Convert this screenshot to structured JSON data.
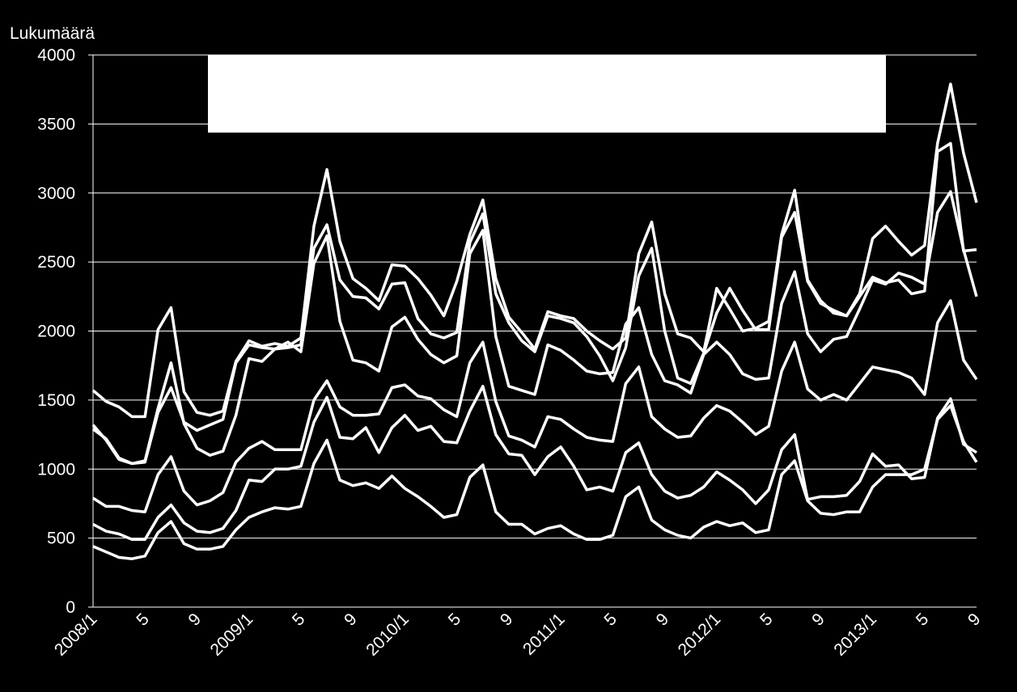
{
  "chart_data": {
    "type": "line",
    "y_label": "Lukumäärä",
    "categories": [
      "2008/1",
      null,
      null,
      null,
      "5",
      null,
      null,
      null,
      "9",
      null,
      null,
      null,
      "2009/1",
      null,
      null,
      null,
      "5",
      null,
      null,
      null,
      "9",
      null,
      null,
      null,
      "2010/1",
      null,
      null,
      null,
      "5",
      null,
      null,
      null,
      "9",
      null,
      null,
      null,
      "2011/1",
      null,
      null,
      null,
      "5",
      null,
      null,
      null,
      "9",
      null,
      null,
      null,
      "2012/1",
      null,
      null,
      null,
      "5",
      null,
      null,
      null,
      "9",
      null,
      null,
      null,
      "2013/1",
      null,
      null,
      null,
      "5",
      null,
      null,
      null,
      "9"
    ],
    "series": [
      {
        "color": "#ffffff",
        "values": [
          1570,
          1490,
          1450,
          1380,
          1380,
          2010,
          2170,
          1560,
          1410,
          1390,
          1420,
          1780,
          1930,
          1890,
          1910,
          1890,
          1950,
          2760,
          3170,
          2650,
          2380,
          2310,
          2220,
          2480,
          2470,
          2380,
          2260,
          2110,
          2360,
          2700,
          2950,
          2380,
          2100,
          1990,
          1870,
          2140,
          2110,
          2090,
          2000,
          1930,
          1870,
          1950,
          2560,
          2790,
          2270,
          1980,
          1950,
          1850,
          2310,
          2160,
          2000,
          2020,
          2070,
          2700,
          3020,
          2370,
          2220,
          2130,
          2110,
          2270,
          2670,
          2760,
          2650,
          2550,
          2620,
          3360,
          3790,
          3290,
          2930
        ]
      },
      {
        "color": "#ffffff",
        "values": [
          1320,
          1210,
          1070,
          1040,
          1060,
          1440,
          1770,
          1330,
          1150,
          1100,
          1130,
          1390,
          1800,
          1780,
          1870,
          1880,
          1900,
          2600,
          2770,
          2370,
          2250,
          2240,
          2160,
          2340,
          2350,
          2090,
          1980,
          1950,
          1990,
          2640,
          2850,
          2270,
          2060,
          1930,
          1850,
          2110,
          2090,
          2060,
          1960,
          1820,
          1640,
          1880,
          2400,
          2600,
          2000,
          1660,
          1620,
          1840,
          2130,
          2310,
          2150,
          2010,
          2010,
          2680,
          2860,
          2360,
          2200,
          2150,
          2110,
          2250,
          2390,
          2350,
          2370,
          2270,
          2290,
          3300,
          3360,
          2580,
          2590
        ]
      },
      {
        "color": "#ffffff",
        "values": [
          1290,
          1220,
          1080,
          1040,
          1050,
          1410,
          1590,
          1340,
          1280,
          1320,
          1360,
          1770,
          1900,
          1880,
          1870,
          1920,
          1850,
          2490,
          2690,
          2070,
          1790,
          1770,
          1710,
          2030,
          2100,
          1940,
          1830,
          1770,
          1820,
          2560,
          2730,
          1960,
          1600,
          1570,
          1540,
          1900,
          1860,
          1790,
          1710,
          1690,
          1700,
          2050,
          2170,
          1830,
          1640,
          1610,
          1550,
          1830,
          1920,
          1830,
          1690,
          1650,
          1660,
          2200,
          2430,
          1980,
          1850,
          1940,
          1960,
          2160,
          2370,
          2340,
          2420,
          2390,
          2340,
          2860,
          3010,
          2590,
          2250
        ]
      },
      {
        "color": "#ffffff",
        "values": [
          790,
          730,
          730,
          700,
          690,
          960,
          1090,
          840,
          740,
          770,
          830,
          1050,
          1150,
          1200,
          1140,
          1140,
          1140,
          1500,
          1640,
          1450,
          1390,
          1390,
          1400,
          1590,
          1610,
          1530,
          1510,
          1430,
          1380,
          1770,
          1920,
          1490,
          1240,
          1210,
          1160,
          1380,
          1360,
          1290,
          1230,
          1210,
          1200,
          1620,
          1740,
          1380,
          1290,
          1230,
          1240,
          1370,
          1460,
          1420,
          1340,
          1250,
          1310,
          1710,
          1920,
          1580,
          1500,
          1540,
          1500,
          1620,
          1740,
          1720,
          1700,
          1660,
          1540,
          2060,
          2220,
          1790,
          1650
        ]
      },
      {
        "color": "#ffffff",
        "values": [
          600,
          550,
          530,
          490,
          490,
          650,
          740,
          610,
          550,
          540,
          570,
          700,
          920,
          910,
          1000,
          1000,
          1020,
          1340,
          1520,
          1230,
          1220,
          1300,
          1120,
          1300,
          1390,
          1280,
          1310,
          1200,
          1190,
          1420,
          1600,
          1250,
          1110,
          1100,
          960,
          1090,
          1160,
          1020,
          850,
          870,
          840,
          1120,
          1190,
          960,
          840,
          790,
          810,
          870,
          980,
          920,
          850,
          750,
          850,
          1140,
          1250,
          780,
          800,
          800,
          810,
          910,
          1110,
          1020,
          1030,
          930,
          940,
          1370,
          1510,
          1180,
          1120
        ]
      },
      {
        "color": "#ffffff",
        "values": [
          440,
          400,
          360,
          350,
          370,
          540,
          620,
          460,
          420,
          420,
          440,
          560,
          650,
          690,
          720,
          710,
          730,
          1040,
          1210,
          920,
          880,
          900,
          860,
          950,
          860,
          800,
          730,
          650,
          670,
          940,
          1030,
          690,
          600,
          600,
          530,
          570,
          590,
          530,
          490,
          490,
          520,
          800,
          870,
          630,
          560,
          520,
          500,
          580,
          620,
          590,
          610,
          540,
          560,
          960,
          1060,
          770,
          680,
          670,
          690,
          690,
          870,
          960,
          960,
          960,
          1000,
          1360,
          1460,
          1200,
          1050
        ]
      }
    ],
    "ylim": [
      0,
      4000
    ],
    "yticks": [
      0,
      500,
      1000,
      1500,
      2000,
      2500,
      3000,
      3500,
      4000
    ],
    "grid": true
  }
}
